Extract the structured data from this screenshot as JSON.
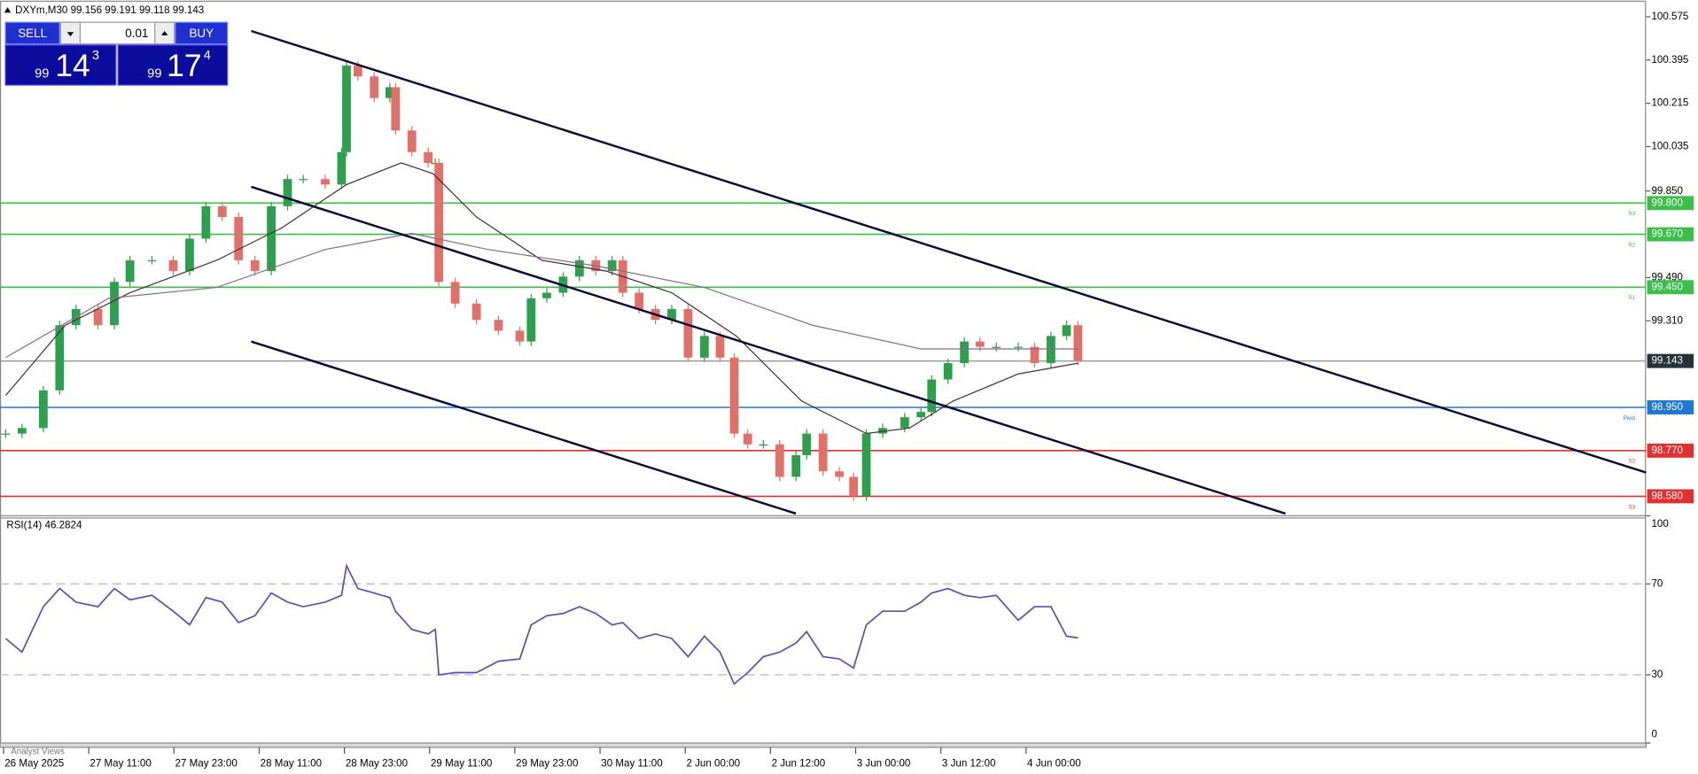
{
  "chart_data": [
    {
      "type": "candlestick",
      "title": "DXYm,M30 99.156 99.191 99.118 99.143",
      "xlim": [
        -0.5,
        231.3
      ],
      "xticks": [
        {
          "value": 0,
          "label": "26 May 2025"
        },
        {
          "value": 12,
          "label": "27 May 11:00"
        },
        {
          "value": 24,
          "label": "27 May 23:00"
        },
        {
          "value": 36,
          "label": "28 May 11:00"
        },
        {
          "value": 48,
          "label": "28 May 23:00"
        },
        {
          "value": 60,
          "label": "29 May 11:00"
        },
        {
          "value": 72,
          "label": "29 May 23:00"
        },
        {
          "value": 84,
          "label": "30 May 11:00"
        },
        {
          "value": 96,
          "label": "2 Jun 00:00"
        },
        {
          "value": 108,
          "label": "2 Jun 12:00"
        },
        {
          "value": 120,
          "label": "3 Jun 00:00"
        },
        {
          "value": 132,
          "label": "3 Jun 12:00"
        },
        {
          "value": 144,
          "label": "4 Jun 00:00"
        }
      ],
      "ylim": [
        98.508,
        100.642
      ],
      "yticks": [
        100.575,
        100.395,
        100.215,
        100.035,
        {
          "value": 99.85,
          "label": "99.850"
        },
        {
          "value": 99.49,
          "label": "99.490"
        },
        {
          "value": 99.31,
          "label": "99.310"
        }
      ],
      "up_color": "#2e9e4f",
      "down_color": "#e0706a",
      "x": [
        0.3,
        2.6,
        5.6,
        7.9,
        10.2,
        13.3,
        15.6,
        17.8,
        20.9,
        23.9,
        26.2,
        28.5,
        30.8,
        33.1,
        35.4,
        37.7,
        40.0,
        42.2,
        45.3,
        47.6,
        48.3,
        49.9,
        52.2,
        54.4,
        55.2,
        57.5,
        59.8,
        60.8,
        61.3,
        63.6,
        66.6,
        69.7,
        72.7,
        74.3,
        76.5,
        78.8,
        81.1,
        83.4,
        85.7,
        87.2,
        89.5,
        91.8,
        94.1,
        96.4,
        98.7,
        100.9,
        102.9,
        104.8,
        107.0,
        109.3,
        111.6,
        113.1,
        115.4,
        117.7,
        119.7,
        121.5,
        123.8,
        126.9,
        129.2,
        130.7,
        133.0,
        135.3,
        137.5,
        139.8,
        142.9,
        145.2,
        147.5,
        149.7,
        151.3
      ],
      "values": [
        98.841,
        98.864,
        99.021,
        99.292,
        99.359,
        99.292,
        99.472,
        99.562,
        99.562,
        99.517,
        99.652,
        99.787,
        99.742,
        99.562,
        99.517,
        99.787,
        99.9,
        99.9,
        99.877,
        100.012,
        100.372,
        100.327,
        100.237,
        100.282,
        100.102,
        100.012,
        99.967,
        99.967,
        99.472,
        99.382,
        99.314,
        99.269,
        99.224,
        99.404,
        99.427,
        99.494,
        99.562,
        99.517,
        99.562,
        99.427,
        99.359,
        99.314,
        99.359,
        99.157,
        99.247,
        99.157,
        98.841,
        98.796,
        98.796,
        98.661,
        98.751,
        98.841,
        98.684,
        98.661,
        98.58,
        98.841,
        98.864,
        98.909,
        98.931,
        99.066,
        99.134,
        99.224,
        99.202,
        99.202,
        99.202,
        99.134,
        99.247,
        99.292,
        99.143
      ],
      "moving_averages": [
        {
          "color": "#4a3030",
          "x": [
            0.3,
            8.7,
            17.8,
            30.0,
            39.2,
            48.3,
            56.0,
            60.5,
            66.6,
            75.8,
            84.9,
            94.1,
            103.2,
            112.4,
            121.5,
            127.6,
            133.7,
            142.9,
            151.3
          ],
          "values": [
            98.999,
            99.292,
            99.427,
            99.562,
            99.697,
            99.877,
            99.967,
            99.922,
            99.742,
            99.562,
            99.517,
            99.427,
            99.247,
            98.976,
            98.841,
            98.864,
            98.976,
            99.089,
            99.134
          ]
        },
        {
          "color": "#8a6a8e",
          "x": [
            0.3,
            14.8,
            30.0,
            45.3,
            57.5,
            68.2,
            83.4,
            98.7,
            113.9,
            129.2,
            142.9,
            151.3
          ],
          "values": [
            99.157,
            99.404,
            99.449,
            99.607,
            99.674,
            99.607,
            99.539,
            99.449,
            99.292,
            99.193,
            99.193,
            99.193
          ]
        }
      ],
      "levels": [
        {
          "value": 99.8,
          "label": "99.800",
          "tag": "R3",
          "color": "#3cbf4a"
        },
        {
          "value": 99.67,
          "label": "99.670",
          "tag": "R2",
          "color": "#3cbf4a"
        },
        {
          "value": 99.45,
          "label": "99.450",
          "tag": "R1",
          "color": "#3cbf4a"
        },
        {
          "value": 99.143,
          "color": "#9a9a9a",
          "label_fill": "#263238"
        },
        {
          "value": 98.95,
          "label": "98.950",
          "tag": "Pivot",
          "color": "#1e78d0"
        },
        {
          "value": 98.77,
          "label": "98.770",
          "tag": "S2",
          "color": "#e03030"
        },
        {
          "value": 98.58,
          "label": "98.580",
          "tag": "S3",
          "color": "#e03030"
        }
      ]
    },
    {
      "type": "line",
      "title": "RSI(14) 46.2824",
      "color": "#5b4fb5",
      "xlim": [
        -0.5,
        231.3
      ],
      "ylim": [
        0,
        100
      ],
      "yticks": [
        0,
        30,
        70,
        100
      ],
      "x": [
        0.3,
        2.6,
        5.6,
        7.9,
        10.2,
        13.3,
        15.6,
        17.8,
        20.9,
        23.9,
        26.2,
        28.5,
        30.8,
        33.1,
        35.4,
        37.7,
        40.0,
        42.2,
        45.3,
        47.6,
        48.3,
        49.9,
        52.2,
        54.4,
        55.2,
        57.5,
        59.8,
        60.8,
        61.3,
        63.6,
        66.6,
        69.7,
        72.7,
        74.3,
        76.5,
        78.8,
        81.1,
        83.4,
        85.7,
        87.2,
        89.5,
        91.8,
        94.1,
        96.4,
        98.7,
        100.9,
        102.9,
        104.8,
        107.0,
        109.3,
        111.6,
        113.1,
        115.4,
        117.7,
        119.7,
        121.5,
        123.8,
        126.9,
        129.2,
        130.7,
        133.0,
        135.3,
        137.5,
        139.8,
        142.9,
        145.2,
        147.5,
        149.7,
        151.3
      ],
      "values": [
        46,
        40,
        60,
        68,
        62,
        60,
        68,
        63,
        65,
        58,
        52,
        64,
        62,
        53,
        56,
        66,
        62,
        60,
        62,
        65,
        78,
        68,
        66,
        64,
        58,
        50,
        48,
        50,
        30,
        31,
        31,
        36,
        37,
        52,
        56,
        57,
        60,
        57,
        52,
        53,
        46,
        48,
        46,
        38,
        47,
        40,
        26,
        31,
        38,
        40,
        44,
        49,
        38,
        37,
        33,
        52,
        58,
        58,
        62,
        66,
        68,
        65,
        64,
        65,
        54,
        60,
        60,
        47,
        46.2824
      ]
    }
  ],
  "trade_panel": {
    "sell": "SELL",
    "buy": "BUY",
    "lot": "0.01",
    "bid": {
      "big_figure": "99",
      "pips": "14",
      "point": "3"
    },
    "ask": {
      "big_figure": "99",
      "pips": "17",
      "point": "4"
    }
  },
  "bottom_tab": "Analyst Views"
}
